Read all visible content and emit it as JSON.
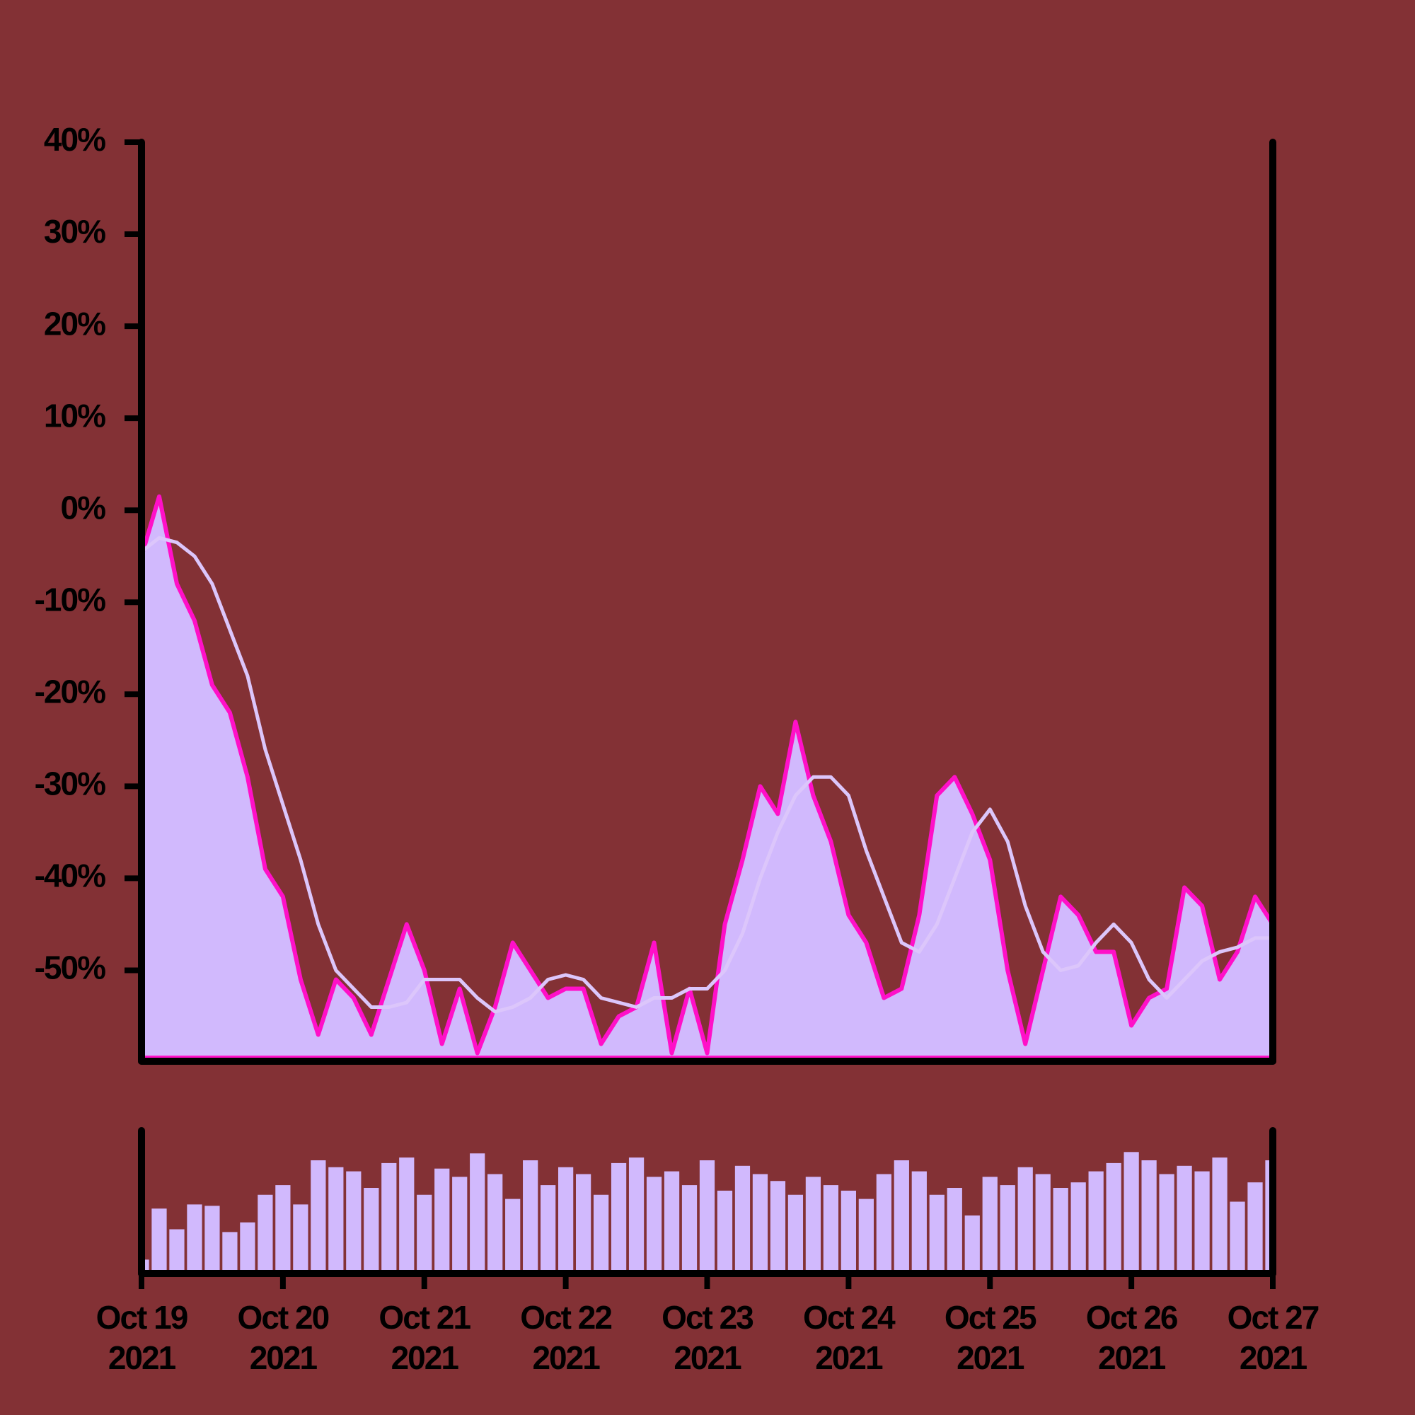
{
  "chart_data": [
    {
      "type": "area",
      "x": [
        "2021-10-19T00:00",
        "2021-10-19T03:00",
        "2021-10-19T06:00",
        "2021-10-19T09:00",
        "2021-10-19T12:00",
        "2021-10-19T15:00",
        "2021-10-19T18:00",
        "2021-10-19T21:00",
        "2021-10-20T00:00",
        "2021-10-20T03:00",
        "2021-10-20T06:00",
        "2021-10-20T09:00",
        "2021-10-20T12:00",
        "2021-10-20T15:00",
        "2021-10-20T18:00",
        "2021-10-20T21:00",
        "2021-10-21T00:00",
        "2021-10-21T03:00",
        "2021-10-21T06:00",
        "2021-10-21T09:00",
        "2021-10-21T12:00",
        "2021-10-21T15:00",
        "2021-10-21T18:00",
        "2021-10-21T21:00",
        "2021-10-22T00:00",
        "2021-10-22T03:00",
        "2021-10-22T06:00",
        "2021-10-22T09:00",
        "2021-10-22T12:00",
        "2021-10-22T15:00",
        "2021-10-22T18:00",
        "2021-10-22T21:00",
        "2021-10-23T00:00",
        "2021-10-23T03:00",
        "2021-10-23T06:00",
        "2021-10-23T09:00",
        "2021-10-23T12:00",
        "2021-10-23T15:00",
        "2021-10-23T18:00",
        "2021-10-23T21:00",
        "2021-10-24T00:00",
        "2021-10-24T03:00",
        "2021-10-24T06:00",
        "2021-10-24T09:00",
        "2021-10-24T12:00",
        "2021-10-24T15:00",
        "2021-10-24T18:00",
        "2021-10-24T21:00",
        "2021-10-25T00:00",
        "2021-10-25T03:00",
        "2021-10-25T06:00",
        "2021-10-25T09:00",
        "2021-10-25T12:00",
        "2021-10-25T15:00",
        "2021-10-25T18:00",
        "2021-10-25T21:00",
        "2021-10-26T00:00",
        "2021-10-26T03:00",
        "2021-10-26T06:00",
        "2021-10-26T09:00",
        "2021-10-26T12:00",
        "2021-10-26T15:00",
        "2021-10-26T18:00",
        "2021-10-26T21:00",
        "2021-10-27T00:00"
      ],
      "xlim": [
        "2021-10-19T00:00",
        "2021-10-27T00:00"
      ],
      "ylim": [
        -59.5,
        40
      ],
      "yticks": [
        {
          "value": 40,
          "label": "40%"
        },
        {
          "value": 30,
          "label": "30%"
        },
        {
          "value": 20,
          "label": "20%"
        },
        {
          "value": 10,
          "label": "10%"
        },
        {
          "value": 0,
          "label": "0%"
        },
        {
          "value": -10,
          "label": "-10%"
        },
        {
          "value": -20,
          "label": "-20%"
        },
        {
          "value": -30,
          "label": "-30%"
        },
        {
          "value": -40,
          "label": "-40%"
        },
        {
          "value": -50,
          "label": "-50%"
        }
      ],
      "series": [
        {
          "color": "#ff10c8",
          "fill": "#d1b9fd",
          "values": [
            -5,
            1.5,
            -8,
            -12,
            -19,
            -22,
            -29,
            -39,
            -42,
            -51,
            -57,
            -51,
            -53,
            -57,
            -51,
            -45,
            -50,
            -58,
            -52,
            -59,
            -54,
            -47,
            -50,
            -53,
            -52,
            -52,
            -58,
            -55,
            -54,
            -47,
            -59,
            -52,
            -59,
            -45,
            -38,
            -30,
            -33,
            -23,
            -31,
            -36,
            -44,
            -47,
            -53,
            -52,
            -44,
            -31,
            -29,
            -33,
            -38,
            -50,
            -58,
            -50,
            -42,
            -44,
            -48,
            -48,
            -56,
            -53,
            -52,
            -41,
            -43,
            -51,
            -48,
            -42,
            -45
          ]
        },
        {
          "color": "#dcc6fb",
          "values": [
            -4.5,
            -3,
            -3.5,
            -5,
            -8,
            -13,
            -18,
            -26,
            -32,
            -38,
            -45,
            -50,
            -52,
            -54,
            -54,
            -53.5,
            -51,
            -51,
            -51,
            -53,
            -54.5,
            -54,
            -53,
            -51,
            -50.5,
            -51,
            -53,
            -53.5,
            -54,
            -53,
            -53,
            -52,
            -52,
            -50,
            -46,
            -40,
            -35,
            -31,
            -29,
            -29,
            -31,
            -37,
            -42,
            -47,
            -48,
            -45,
            -40,
            -35,
            -32.5,
            -36,
            -43,
            -48,
            -50,
            -49.5,
            -47,
            -45,
            -47,
            -51,
            -53,
            -51,
            -49,
            -48,
            -47.5,
            -46.5,
            -46.5
          ]
        }
      ]
    },
    {
      "type": "bar",
      "x": [
        "2021-10-19T00:00",
        "2021-10-19T03:00",
        "2021-10-19T06:00",
        "2021-10-19T09:00",
        "2021-10-19T12:00",
        "2021-10-19T15:00",
        "2021-10-19T18:00",
        "2021-10-19T21:00",
        "2021-10-20T00:00",
        "2021-10-20T03:00",
        "2021-10-20T06:00",
        "2021-10-20T09:00",
        "2021-10-20T12:00",
        "2021-10-20T15:00",
        "2021-10-20T18:00",
        "2021-10-20T21:00",
        "2021-10-21T00:00",
        "2021-10-21T03:00",
        "2021-10-21T06:00",
        "2021-10-21T09:00",
        "2021-10-21T12:00",
        "2021-10-21T15:00",
        "2021-10-21T18:00",
        "2021-10-21T21:00",
        "2021-10-22T00:00",
        "2021-10-22T03:00",
        "2021-10-22T06:00",
        "2021-10-22T09:00",
        "2021-10-22T12:00",
        "2021-10-22T15:00",
        "2021-10-22T18:00",
        "2021-10-22T21:00",
        "2021-10-23T00:00",
        "2021-10-23T03:00",
        "2021-10-23T06:00",
        "2021-10-23T09:00",
        "2021-10-23T12:00",
        "2021-10-23T15:00",
        "2021-10-23T18:00",
        "2021-10-23T21:00",
        "2021-10-24T00:00",
        "2021-10-24T03:00",
        "2021-10-24T06:00",
        "2021-10-24T09:00",
        "2021-10-24T12:00",
        "2021-10-24T15:00",
        "2021-10-24T18:00",
        "2021-10-24T21:00",
        "2021-10-25T00:00",
        "2021-10-25T03:00",
        "2021-10-25T06:00",
        "2021-10-25T09:00",
        "2021-10-25T12:00",
        "2021-10-25T15:00",
        "2021-10-25T18:00",
        "2021-10-25T21:00",
        "2021-10-26T00:00",
        "2021-10-26T03:00",
        "2021-10-26T06:00",
        "2021-10-26T09:00",
        "2021-10-26T12:00",
        "2021-10-26T15:00",
        "2021-10-26T18:00",
        "2021-10-26T21:00",
        "2021-10-27T00:00"
      ],
      "xlim": [
        "2021-10-19T00:00",
        "2021-10-27T00:00"
      ],
      "xticks": [
        {
          "value": "2021-10-19T00:00",
          "label": [
            "Oct 19",
            "2021"
          ]
        },
        {
          "value": "2021-10-20T00:00",
          "label": [
            "Oct 20",
            "2021"
          ]
        },
        {
          "value": "2021-10-21T00:00",
          "label": [
            "Oct 21",
            "2021"
          ]
        },
        {
          "value": "2021-10-22T00:00",
          "label": [
            "Oct 22",
            "2021"
          ]
        },
        {
          "value": "2021-10-23T00:00",
          "label": [
            "Oct 23",
            "2021"
          ]
        },
        {
          "value": "2021-10-24T00:00",
          "label": [
            "Oct 24",
            "2021"
          ]
        },
        {
          "value": "2021-10-25T00:00",
          "label": [
            "Oct 25",
            "2021"
          ]
        },
        {
          "value": "2021-10-26T00:00",
          "label": [
            "Oct 26",
            "2021"
          ]
        },
        {
          "value": "2021-10-27T00:00",
          "label": [
            "Oct 27",
            "2021"
          ]
        }
      ],
      "ylim": [
        0,
        100
      ],
      "color": "#d1b9fd",
      "values": [
        8,
        45,
        30,
        48,
        47,
        28,
        35,
        55,
        62,
        48,
        80,
        75,
        72,
        60,
        78,
        82,
        55,
        74,
        68,
        85,
        70,
        52,
        80,
        62,
        75,
        70,
        55,
        78,
        82,
        68,
        72,
        62,
        80,
        58,
        76,
        70,
        65,
        55,
        68,
        62,
        58,
        52,
        70,
        80,
        72,
        55,
        60,
        40,
        68,
        62,
        75,
        70,
        60,
        64,
        72,
        78,
        86,
        80,
        70,
        76,
        72,
        82,
        50,
        64,
        80
      ]
    }
  ]
}
